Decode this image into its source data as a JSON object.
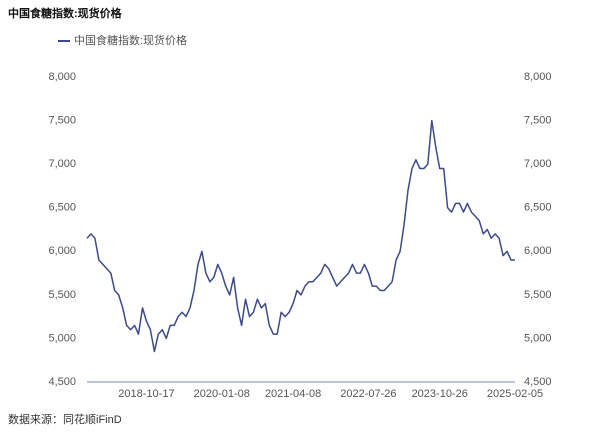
{
  "chart_data": {
    "type": "line",
    "title": "中国食糖指数:现货价格",
    "source": "数据来源：同花顺iFinD",
    "categories": [
      null,
      null,
      null,
      null,
      null,
      null,
      null,
      null,
      null,
      null,
      null,
      null,
      null,
      null,
      null,
      "2018-10-17",
      null,
      null,
      null,
      null,
      null,
      null,
      null,
      null,
      null,
      null,
      null,
      null,
      null,
      null,
      null,
      null,
      null,
      null,
      "2020-01-08",
      null,
      null,
      null,
      null,
      null,
      null,
      null,
      null,
      null,
      null,
      null,
      null,
      null,
      null,
      null,
      null,
      null,
      "2021-04-08",
      null,
      null,
      null,
      null,
      null,
      null,
      null,
      null,
      null,
      null,
      null,
      null,
      null,
      null,
      null,
      null,
      null,
      null,
      "2022-07-26",
      null,
      null,
      null,
      null,
      null,
      null,
      null,
      null,
      null,
      null,
      null,
      null,
      null,
      null,
      null,
      null,
      null,
      "2023-10-26",
      null,
      null,
      null,
      null,
      null,
      null,
      null,
      null,
      null,
      null,
      null,
      null,
      null,
      null,
      null,
      null,
      null,
      null,
      "2025-02-05"
    ],
    "series": [
      {
        "name": "中国食糖指数:现货价格",
        "color": "#3c4a8c",
        "values": [
          6150,
          6200,
          6150,
          5900,
          5850,
          5800,
          5750,
          5550,
          5500,
          5350,
          5150,
          5100,
          5150,
          5050,
          5350,
          5200,
          5100,
          4850,
          5050,
          5100,
          5000,
          5150,
          5150,
          5250,
          5300,
          5250,
          5350,
          5550,
          5850,
          6000,
          5750,
          5650,
          5700,
          5850,
          5750,
          5600,
          5500,
          5700,
          5350,
          5150,
          5450,
          5250,
          5300,
          5450,
          5350,
          5400,
          5150,
          5050,
          5050,
          5300,
          5250,
          5300,
          5400,
          5550,
          5500,
          5600,
          5650,
          5650,
          5700,
          5750,
          5850,
          5800,
          5700,
          5600,
          5650,
          5700,
          5750,
          5850,
          5750,
          5750,
          5850,
          5750,
          5600,
          5600,
          5550,
          5550,
          5600,
          5650,
          5900,
          6000,
          6300,
          6700,
          6950,
          7050,
          6950,
          6950,
          7000,
          7500,
          7200,
          6950,
          6950,
          6500,
          6450,
          6550,
          6550,
          6450,
          6550,
          6450,
          6400,
          6350,
          6200,
          6250,
          6150,
          6200,
          6150,
          5950,
          6000,
          5900,
          5900
        ]
      }
    ],
    "ylim": [
      4500,
      8000
    ],
    "yticks": [
      {
        "value": 4500,
        "label": "4,500"
      },
      {
        "value": 5000,
        "label": "5,000"
      },
      {
        "value": 5500,
        "label": "5,500"
      },
      {
        "value": 6000,
        "label": "6,000"
      },
      {
        "value": 6500,
        "label": "6,500"
      },
      {
        "value": 7000,
        "label": "7,000"
      },
      {
        "value": 7500,
        "label": "7,500"
      },
      {
        "value": 8000,
        "label": "8,000"
      }
    ],
    "legend": "top-left"
  }
}
